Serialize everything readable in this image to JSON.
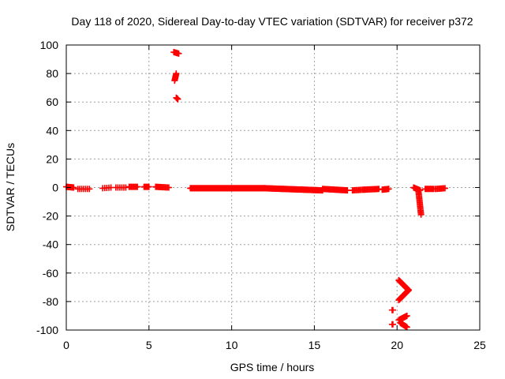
{
  "chart_data": {
    "type": "scatter",
    "title": "Day 118 of 2020, Sidereal Day-to-day VTEC variation (SDTVAR) for receiver p372",
    "xlabel": "GPS time / hours",
    "ylabel": "SDTVAR / TECUs",
    "xlim": [
      0,
      25
    ],
    "ylim": [
      -100,
      100
    ],
    "xticks": [
      0,
      5,
      10,
      15,
      20,
      25
    ],
    "yticks": [
      100,
      80,
      60,
      40,
      20,
      0,
      -20,
      -40,
      -60,
      -80,
      -100
    ],
    "grid": true,
    "legend": "none",
    "series": [
      {
        "name": "SDTVAR",
        "color": "#ff0000",
        "marker": "plus",
        "segments": [
          {
            "x0": 0.0,
            "x1": 0.45,
            "n": 12,
            "y0": 0.5,
            "y1": 0.0
          },
          {
            "x0": 0.7,
            "x1": 1.4,
            "n": 7,
            "y0": -1.0,
            "y1": -1.0
          },
          {
            "x0": 2.2,
            "x1": 2.7,
            "n": 5,
            "y0": -0.5,
            "y1": 0.0
          },
          {
            "x0": 3.0,
            "x1": 3.6,
            "n": 6,
            "y0": 0.0,
            "y1": 0.0
          },
          {
            "x0": 3.8,
            "x1": 4.3,
            "n": 8,
            "y0": 0.5,
            "y1": 0.5
          },
          {
            "x0": 4.7,
            "x1": 5.0,
            "n": 6,
            "y0": 0.5,
            "y1": 0.5
          },
          {
            "x0": 5.4,
            "x1": 6.2,
            "n": 12,
            "y0": 0.5,
            "y1": 0.0
          },
          {
            "x0": 6.5,
            "x1": 6.8,
            "n": 6,
            "y0": 95.0,
            "y1": 94.0
          },
          {
            "x0": 6.55,
            "x1": 6.65,
            "n": 8,
            "y0": 75.0,
            "y1": 80.0
          },
          {
            "x0": 6.65,
            "x1": 6.75,
            "n": 4,
            "y0": 63.0,
            "y1": 62.0
          },
          {
            "x0": 7.5,
            "x1": 12.0,
            "n": 120,
            "y0": -0.5,
            "y1": -0.5
          },
          {
            "x0": 12.0,
            "x1": 15.5,
            "n": 80,
            "y0": -0.5,
            "y1": -2.0
          },
          {
            "x0": 15.5,
            "x1": 17.0,
            "n": 25,
            "y0": -1.0,
            "y1": -2.0
          },
          {
            "x0": 17.3,
            "x1": 18.0,
            "n": 10,
            "y0": -2.0,
            "y1": -1.5
          },
          {
            "x0": 18.0,
            "x1": 18.9,
            "n": 14,
            "y0": -1.5,
            "y1": -1.0
          },
          {
            "x0": 19.1,
            "x1": 19.5,
            "n": 10,
            "y0": -1.5,
            "y1": -1.0
          },
          {
            "x0": 19.7,
            "x1": 19.75,
            "n": 2,
            "y0": -86.0,
            "y1": -86.0
          },
          {
            "x0": 19.7,
            "x1": 19.75,
            "n": 2,
            "y0": -96.0,
            "y1": -96.0
          },
          {
            "x0": 20.1,
            "x1": 20.7,
            "n": 22,
            "y0": -65.0,
            "y1": -72.0
          },
          {
            "x0": 20.7,
            "x1": 20.1,
            "n": 22,
            "y0": -72.0,
            "y1": -79.0
          },
          {
            "x0": 20.1,
            "x1": 20.6,
            "n": 14,
            "y0": -93.0,
            "y1": -90.0
          },
          {
            "x0": 20.2,
            "x1": 20.6,
            "n": 10,
            "y0": -95.0,
            "y1": -98.0
          },
          {
            "x0": 21.0,
            "x1": 21.4,
            "n": 10,
            "y0": 0.0,
            "y1": -2.0
          },
          {
            "x0": 21.3,
            "x1": 21.45,
            "n": 18,
            "y0": -3.0,
            "y1": -19.0
          },
          {
            "x0": 21.7,
            "x1": 22.2,
            "n": 8,
            "y0": -1.0,
            "y1": -1.0
          },
          {
            "x0": 22.3,
            "x1": 22.9,
            "n": 9,
            "y0": -1.0,
            "y1": -0.5
          }
        ]
      }
    ]
  }
}
